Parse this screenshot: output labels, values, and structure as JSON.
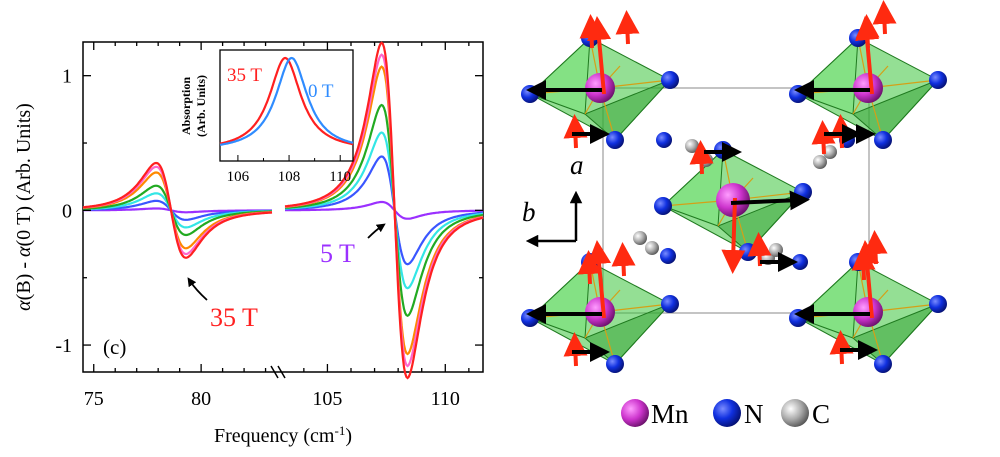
{
  "chart_data": {
    "type": "line",
    "xlabel_pre": "Frequency (cm",
    "xlabel_sup": "-1",
    "xlabel_post": ")",
    "ylabel_a": "α",
    "ylabel_b": "(B) - ",
    "ylabel_c": "α",
    "ylabel_d": "(0 T) (Arb. Units)",
    "panel_label": "(c)",
    "xticks_left": [
      "75",
      "80"
    ],
    "xticks_right": [
      "105",
      "110"
    ],
    "yticks": [
      "1",
      "0",
      "-1"
    ],
    "ylim": [
      -1.2,
      1.25
    ],
    "annotations": {
      "high": "35 T",
      "low": "5 T"
    },
    "series": [
      {
        "color": "#9b30ff",
        "a1": 0.02,
        "a2": 0.07
      },
      {
        "color": "#3a56ff",
        "a1": 0.1,
        "a2": 0.45
      },
      {
        "color": "#33e6e6",
        "a1": 0.18,
        "a2": 0.65
      },
      {
        "color": "#22aa22",
        "a1": 0.26,
        "a2": 0.88
      },
      {
        "color": "#ff8800",
        "a1": 0.4,
        "a2": 1.2
      },
      {
        "color": "#ff66cc",
        "a1": 0.46,
        "a2": 1.3
      },
      {
        "color": "#ff2020",
        "a1": 0.5,
        "a2": 1.4
      }
    ],
    "inset": {
      "ylabel_line1": "Absorption",
      "ylabel_line2": "(Arb. Units)",
      "xticks": [
        "106",
        "108",
        "110"
      ],
      "series": [
        {
          "name": "35 T",
          "color": "#ff2020",
          "center": 107.85
        },
        {
          "name": "0 T",
          "color": "#2f8cff",
          "center": 108.1
        }
      ]
    }
  },
  "structure": {
    "axis_a": "a",
    "axis_b": "b",
    "legend": [
      {
        "label": "Mn",
        "color": "#e040e0"
      },
      {
        "label": "N",
        "color": "#1030e0"
      },
      {
        "label": "C",
        "color": "#999999"
      }
    ]
  }
}
